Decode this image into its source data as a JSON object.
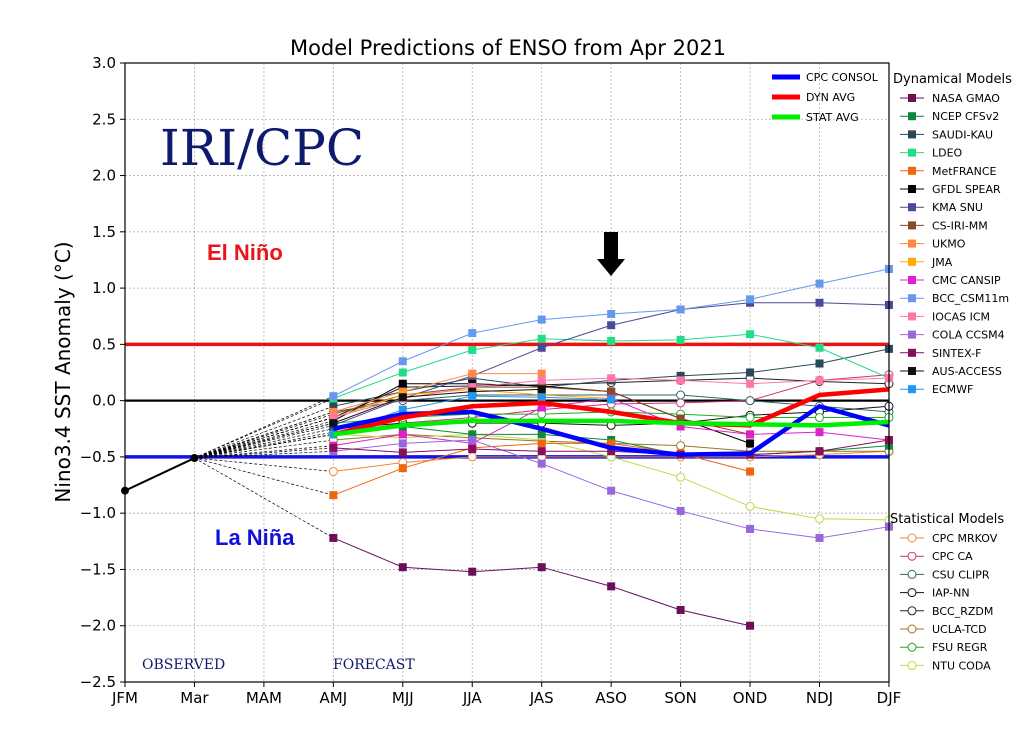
{
  "chart_data": {
    "type": "line",
    "title": "Model Predictions of ENSO from Apr 2021",
    "ylabel": "Nino3.4 SST Anomaly (°C)",
    "xlabel": "",
    "categories": [
      "JFM",
      "Mar",
      "MAM",
      "AMJ",
      "MJJ",
      "JJA",
      "JAS",
      "ASO",
      "SON",
      "OND",
      "NDJ",
      "DJF"
    ],
    "yticks": [
      3.0,
      2.5,
      2.0,
      1.5,
      1.0,
      0.5,
      0.0,
      -0.5,
      -1.0,
      -1.5,
      -2.0,
      -2.5
    ],
    "ytick_labels": [
      "3.0",
      "2.5",
      "2.0",
      "1.5",
      "1.0",
      "0.5",
      "0.0",
      "−0.5",
      "−1.0",
      "−1.5",
      "−2.0",
      "−2.5"
    ],
    "ylim": [
      -2.5,
      3.0
    ],
    "grid": true,
    "thresholds": [
      {
        "value": 0.5,
        "color": "#ee1111"
      },
      {
        "value": 0.0,
        "color": "#000000"
      },
      {
        "value": -0.5,
        "color": "#1111ee"
      }
    ],
    "observed": [
      -0.8,
      -0.51
    ],
    "annotations": {
      "iri_cpc": "IRI/CPC",
      "el_nino": "El Niño",
      "la_nina": "La Niña",
      "observed": "OBSERVED",
      "forecast": "FORECAST"
    },
    "legend_averages": [
      {
        "name": "CPC CONSOL",
        "color": "#0000ff"
      },
      {
        "name": "DYN AVG",
        "color": "#ff0000"
      },
      {
        "name": "STAT AVG",
        "color": "#00ee00"
      }
    ],
    "dynamical_heading": "Dynamical Models",
    "statistical_heading": "Statistical Models",
    "averages": [
      {
        "name": "CPC CONSOL",
        "color": "#0000ff",
        "values": [
          -0.25,
          -0.12,
          -0.1,
          -0.25,
          -0.42,
          -0.48,
          -0.47,
          -0.05,
          -0.22
        ]
      },
      {
        "name": "DYN AVG",
        "color": "#ff0000",
        "values": [
          -0.3,
          -0.15,
          -0.05,
          -0.02,
          -0.1,
          -0.2,
          -0.22,
          0.05,
          0.1
        ]
      },
      {
        "name": "STAT AVG",
        "color": "#00ee00",
        "values": [
          -0.3,
          -0.22,
          -0.18,
          -0.18,
          -0.18,
          -0.2,
          -0.21,
          -0.22,
          -0.19
        ]
      }
    ],
    "dynamical_models": [
      {
        "name": "NASA GMAO",
        "color": "#6b0f5a",
        "values": [
          -1.22,
          -1.48,
          -1.52,
          -1.48,
          -1.65,
          -1.86,
          -2.0,
          null,
          null
        ]
      },
      {
        "name": "NCEP CFSv2",
        "color": "#0a8a3a",
        "values": [
          -0.28,
          -0.23,
          -0.3,
          -0.3,
          -0.35,
          -0.48,
          -0.48,
          -0.45,
          -0.4
        ]
      },
      {
        "name": "SAUDI-KAU",
        "color": "#2a4a5a",
        "values": [
          -0.05,
          0.08,
          0.2,
          0.12,
          0.18,
          0.22,
          0.25,
          0.33,
          0.46
        ]
      },
      {
        "name": "LDEO",
        "color": "#22dd88",
        "values": [
          0.02,
          0.25,
          0.45,
          0.55,
          0.53,
          0.54,
          0.59,
          0.47,
          0.2
        ]
      },
      {
        "name": "MetFRANCE",
        "color": "#ee6611",
        "values": [
          -0.84,
          -0.6,
          -0.42,
          -0.38,
          -0.38,
          -0.47,
          -0.63,
          null,
          null
        ]
      },
      {
        "name": "GFDL SPEAR",
        "color": "#000000",
        "values": [
          -0.18,
          0.15,
          0.15,
          0.13,
          0.08,
          -0.16,
          -0.38,
          null,
          null
        ]
      },
      {
        "name": "KMA SNU",
        "color": "#4a4a9a",
        "values": [
          -0.22,
          0.02,
          0.22,
          0.47,
          0.67,
          0.81,
          0.87,
          0.87,
          0.85
        ]
      },
      {
        "name": "CS-IRI-MM",
        "color": "#8a4a2a",
        "values": [
          -0.12,
          0.05,
          0.12,
          0.12,
          0.08,
          -0.16,
          -0.3,
          null,
          null
        ]
      },
      {
        "name": "UKMO",
        "color": "#ff8844",
        "values": [
          -0.1,
          0.08,
          0.24,
          0.24,
          null,
          null,
          null,
          null,
          null
        ]
      },
      {
        "name": "JMA",
        "color": "#ffaa00",
        "values": [
          -0.15,
          0.05,
          0.1,
          0.05,
          0.02,
          null,
          null,
          null,
          null
        ]
      },
      {
        "name": "CMC CANSIP",
        "color": "#dd22cc",
        "values": [
          -0.4,
          -0.3,
          -0.38,
          -0.06,
          0.02,
          -0.23,
          -0.3,
          -0.28,
          -0.35
        ]
      },
      {
        "name": "BCC_CSM11m",
        "color": "#6699ee",
        "values": [
          0.04,
          0.35,
          0.6,
          0.72,
          0.77,
          0.81,
          0.9,
          1.04,
          1.17
        ]
      },
      {
        "name": "IOCAS ICM",
        "color": "#ff77aa",
        "values": [
          -0.15,
          0.02,
          0.12,
          0.18,
          0.2,
          0.18,
          0.15,
          0.18,
          0.2
        ]
      },
      {
        "name": "COLA CCSM4",
        "color": "#9966dd",
        "values": [
          -0.45,
          -0.38,
          -0.35,
          -0.56,
          -0.8,
          -0.98,
          -1.14,
          -1.22,
          -1.12
        ]
      },
      {
        "name": "SINTEX-F",
        "color": "#8a0f5a",
        "values": [
          -0.42,
          -0.46,
          -0.43,
          -0.45,
          -0.45,
          -0.48,
          -0.48,
          -0.45,
          -0.35
        ]
      },
      {
        "name": "AUS-ACCESS",
        "color": "#111111",
        "values": [
          -0.2,
          0.03,
          0.08,
          0.1,
          null,
          null,
          null,
          null,
          null
        ]
      },
      {
        "name": "ECMWF",
        "color": "#2299ee",
        "values": [
          -0.3,
          -0.08,
          0.04,
          0.03,
          0.01,
          null,
          null,
          null,
          null
        ]
      }
    ],
    "statistical_models": [
      {
        "name": "CPC MRKOV",
        "color": "#ee8833",
        "values": [
          -0.63,
          -0.55,
          -0.5,
          -0.5,
          -0.5,
          -0.5,
          -0.5,
          -0.48,
          -0.45
        ]
      },
      {
        "name": "CPC CA",
        "color": "#cc3377",
        "values": [
          -0.3,
          -0.2,
          -0.15,
          -0.08,
          -0.03,
          -0.02,
          0.0,
          0.18,
          0.23
        ]
      },
      {
        "name": "CSU CLIPR",
        "color": "#336666",
        "values": [
          -0.1,
          0.0,
          0.05,
          0.05,
          0.05,
          0.05,
          0.0,
          -0.05,
          -0.1
        ]
      },
      {
        "name": "IAP-NN",
        "color": "#111111",
        "values": [
          -0.25,
          -0.2,
          -0.2,
          -0.2,
          -0.22,
          -0.2,
          -0.13,
          -0.1,
          -0.05
        ]
      },
      {
        "name": "BCC_RZDM",
        "color": "#222222",
        "values": [
          -0.15,
          0.12,
          0.13,
          0.14,
          0.16,
          0.18,
          0.2,
          0.17,
          0.15
        ]
      },
      {
        "name": "UCLA-TCD",
        "color": "#997722",
        "values": [
          -0.35,
          -0.3,
          -0.33,
          -0.36,
          -0.38,
          -0.4,
          -0.45,
          -0.45,
          -0.45
        ]
      },
      {
        "name": "FSU REGR",
        "color": "#22aa22",
        "values": [
          -0.2,
          -0.15,
          -0.12,
          -0.12,
          -0.1,
          -0.12,
          -0.15,
          -0.15,
          -0.15
        ]
      },
      {
        "name": "NTU CODA",
        "color": "#bbdd44",
        "values": [
          -0.3,
          -0.33,
          -0.3,
          -0.35,
          -0.5,
          -0.68,
          -0.94,
          -1.05,
          -1.06
        ]
      }
    ]
  }
}
